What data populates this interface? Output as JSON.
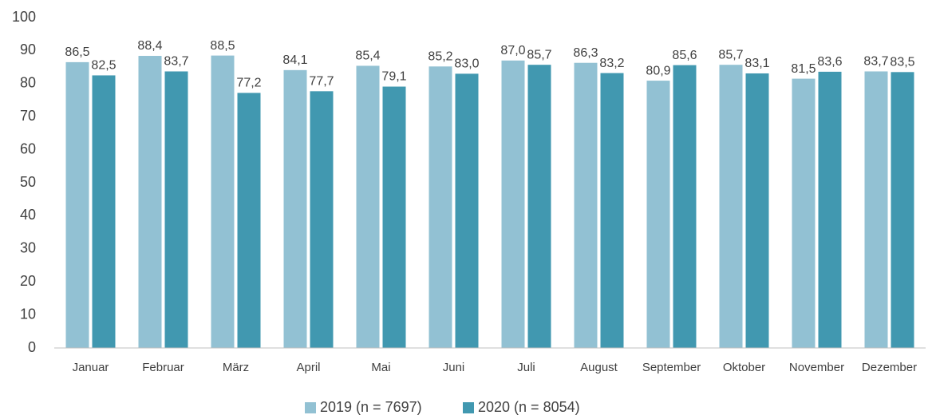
{
  "chart_data": {
    "type": "bar",
    "categories": [
      "Januar",
      "Februar",
      "März",
      "April",
      "Mai",
      "Juni",
      "Juli",
      "August",
      "September",
      "Oktober",
      "November",
      "Dezember"
    ],
    "series": [
      {
        "name": "2019 (n = 7697)",
        "color": "#92c1d3",
        "values": [
          86.5,
          88.4,
          88.5,
          84.1,
          85.4,
          85.2,
          87.0,
          86.3,
          80.9,
          85.7,
          81.5,
          83.7
        ],
        "value_labels": [
          "86,5",
          "88,4",
          "88,5",
          "84,1",
          "85,4",
          "85,2",
          "87,0",
          "86,3",
          "80,9",
          "85,7",
          "81,5",
          "83,7"
        ]
      },
      {
        "name": "2020 (n = 8054)",
        "color": "#4198b0",
        "values": [
          82.5,
          83.7,
          77.2,
          77.7,
          79.1,
          83.0,
          85.7,
          83.2,
          85.6,
          83.1,
          83.6,
          83.5
        ],
        "value_labels": [
          "82,5",
          "83,7",
          "77,2",
          "77,7",
          "79,1",
          "83,0",
          "85,7",
          "83,2",
          "85,6",
          "83,1",
          "83,6",
          "83,5"
        ]
      }
    ],
    "ylim": [
      0,
      100
    ],
    "yticks": [
      0,
      10,
      20,
      30,
      40,
      50,
      60,
      70,
      80,
      90,
      100
    ],
    "grid": false,
    "legend": "bottom"
  }
}
